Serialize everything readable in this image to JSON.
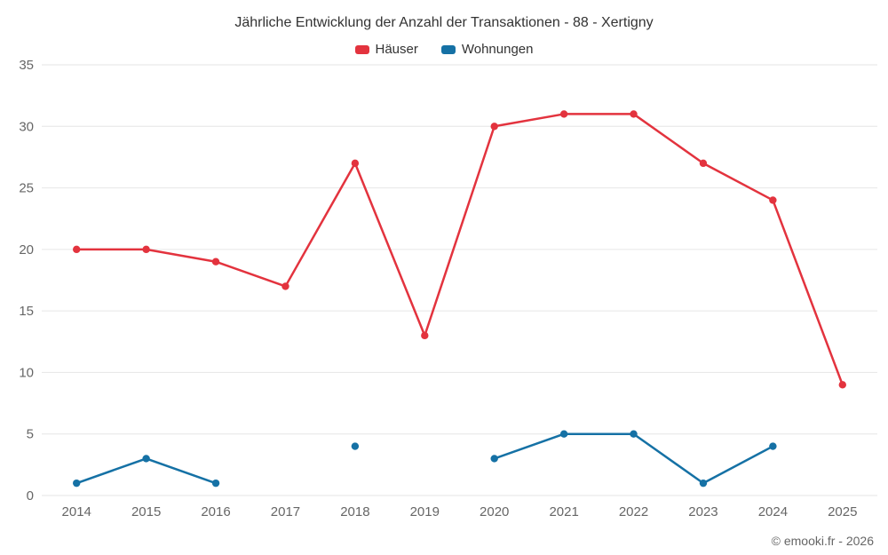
{
  "title": "Jährliche Entwicklung der Anzahl der Transaktionen - 88 - Xertigny",
  "footer": "© emooki.fr - 2026",
  "colors": {
    "hauser": "#e3333e",
    "wohnungen": "#1571a5",
    "grid": "#e6e6e6",
    "axis_label": "#666666",
    "title": "#333333"
  },
  "chart_data": {
    "type": "line",
    "title": "Jährliche Entwicklung der Anzahl der Transaktionen - 88 - Xertigny",
    "categories": [
      "2014",
      "2015",
      "2016",
      "2017",
      "2018",
      "2019",
      "2020",
      "2021",
      "2022",
      "2023",
      "2024",
      "2025"
    ],
    "series": [
      {
        "name": "Häuser",
        "color": "#e3333e",
        "values": [
          20,
          20,
          19,
          17,
          27,
          13,
          30,
          31,
          31,
          27,
          24,
          9
        ]
      },
      {
        "name": "Wohnungen",
        "color": "#1571a5",
        "values": [
          1,
          3,
          1,
          null,
          4,
          null,
          3,
          5,
          5,
          1,
          4,
          null
        ]
      }
    ],
    "xlabel": "",
    "ylabel": "",
    "ylim": [
      0,
      35
    ],
    "ytick_step": 5,
    "grid": "horizontal",
    "legend_position": "top"
  }
}
